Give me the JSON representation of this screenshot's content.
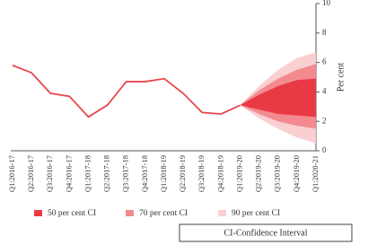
{
  "chart_data": {
    "type": "fan",
    "categories": [
      "Q1:2016-17",
      "Q2:2016-17",
      "Q3:2016-17",
      "Q4:2016-17",
      "Q1:2017-18",
      "Q2:2017-18",
      "Q3:2017-18",
      "Q4:2017-18",
      "Q1:2018-19",
      "Q2:2018-19",
      "Q3:2018-19",
      "Q4:2018-19",
      "Q1:2019-20",
      "Q2:2019-20",
      "Q3:2019-20",
      "Q4:2019-20",
      "Q1:2020-21"
    ],
    "line": {
      "color": "#e8474f",
      "values": [
        5.8,
        5.3,
        3.9,
        3.7,
        2.3,
        3.1,
        4.7,
        4.7,
        4.9,
        3.9,
        2.6,
        2.5,
        3.1,
        null,
        null,
        null,
        null
      ]
    },
    "bands": [
      {
        "name": "50 per cent CI",
        "color": "#e83a45",
        "lower": [
          null,
          null,
          null,
          null,
          null,
          null,
          null,
          null,
          null,
          null,
          null,
          null,
          3.1,
          2.8,
          2.5,
          2.4,
          2.3
        ],
        "upper": [
          null,
          null,
          null,
          null,
          null,
          null,
          null,
          null,
          null,
          null,
          null,
          null,
          3.1,
          3.8,
          4.4,
          4.8,
          4.9
        ]
      },
      {
        "name": "70 per cent CI",
        "color": "#f28a8f",
        "lower": [
          null,
          null,
          null,
          null,
          null,
          null,
          null,
          null,
          null,
          null,
          null,
          null,
          3.1,
          2.5,
          2.0,
          1.7,
          1.5
        ],
        "upper": [
          null,
          null,
          null,
          null,
          null,
          null,
          null,
          null,
          null,
          null,
          null,
          null,
          3.1,
          4.1,
          4.9,
          5.5,
          5.9
        ]
      },
      {
        "name": "90 per cent CI",
        "color": "#f9cfd1",
        "lower": [
          null,
          null,
          null,
          null,
          null,
          null,
          null,
          null,
          null,
          null,
          null,
          null,
          3.1,
          2.2,
          1.5,
          0.9,
          0.5
        ],
        "upper": [
          null,
          null,
          null,
          null,
          null,
          null,
          null,
          null,
          null,
          null,
          null,
          null,
          3.1,
          4.4,
          5.5,
          6.3,
          6.7
        ]
      }
    ],
    "ylabel": "Per cent",
    "ylim": [
      0,
      10
    ],
    "yticks": [
      0,
      2,
      4,
      6,
      8,
      10
    ],
    "note": "CI-Confidence Interval"
  }
}
